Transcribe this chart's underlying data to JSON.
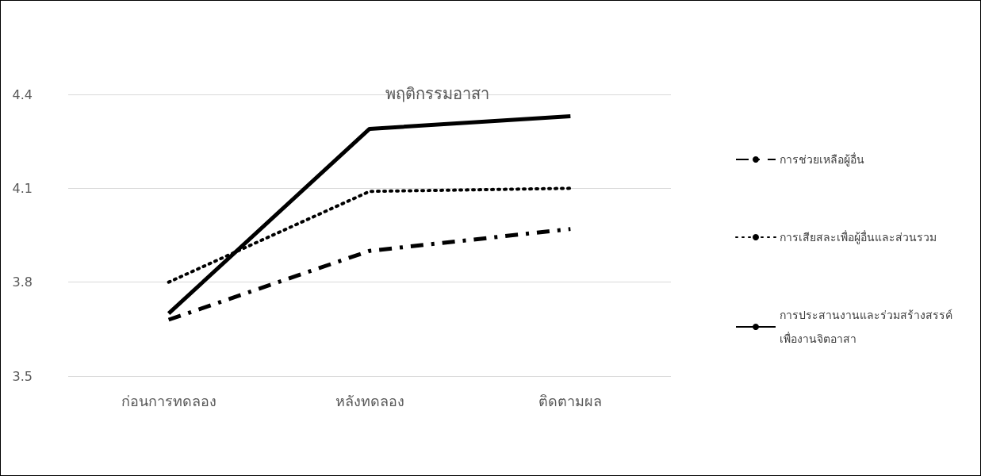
{
  "chart_data": {
    "type": "line",
    "title": "พฤติกรรมอาสา",
    "categories": [
      "ก่อนการทดลอง",
      "หลังทดลอง",
      "ติดตามผล"
    ],
    "series": [
      {
        "name": "การช่วยเหลือผู้อื่น",
        "color": "#000000",
        "line_style": "dashed",
        "values": [
          3.68,
          3.9,
          3.97
        ]
      },
      {
        "name": "การเสียสละเพื่อผู้อื่นและส่วนรวม",
        "color": "#000000",
        "line_style": "dotted",
        "values": [
          3.8,
          4.09,
          4.1
        ]
      },
      {
        "name": "การประสานงานและร่วมสร้างสรรค์ เพื่องานจิตอาสา",
        "color": "#000000",
        "line_style": "solid",
        "values": [
          3.7,
          4.29,
          4.33
        ]
      }
    ],
    "ylim": [
      3.5,
      4.4
    ],
    "yticks": [
      3.5,
      3.8,
      4.1,
      4.4
    ],
    "grid": "y",
    "legend": "right",
    "marker": "none"
  }
}
